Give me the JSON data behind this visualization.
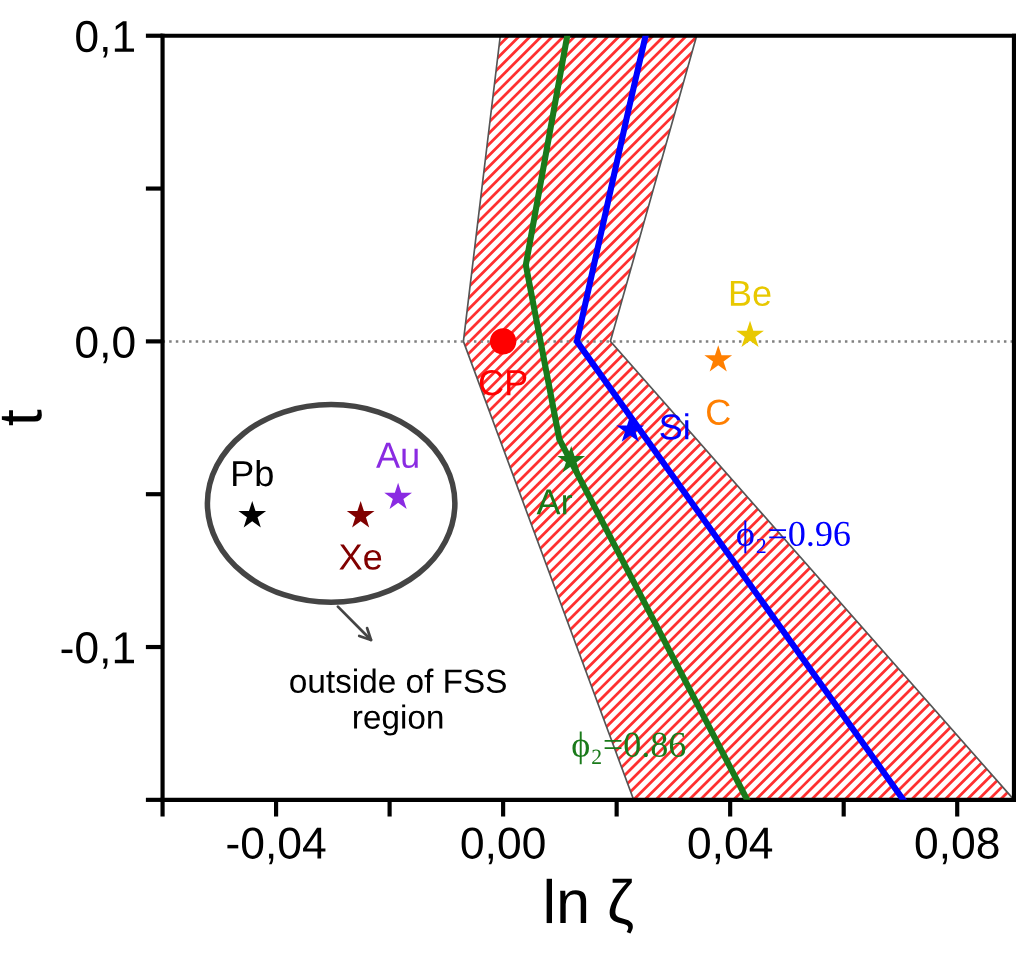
{
  "chart_data": {
    "type": "line",
    "xlabel": "ln ζ",
    "ylabel": "t",
    "xlim": [
      -0.06,
      0.09
    ],
    "ylim": [
      -0.15,
      0.1
    ],
    "xticks": [
      {
        "value": -0.06,
        "label": null
      },
      {
        "value": -0.04,
        "label": "-0,04"
      },
      {
        "value": -0.02,
        "label": null
      },
      {
        "value": 0.0,
        "label": "0,00"
      },
      {
        "value": 0.02,
        "label": null
      },
      {
        "value": 0.04,
        "label": "0,04"
      },
      {
        "value": 0.06,
        "label": null
      },
      {
        "value": 0.08,
        "label": "0,08"
      }
    ],
    "yticks": [
      {
        "value": -0.15,
        "label": null
      },
      {
        "value": -0.1,
        "label": "-0,1"
      },
      {
        "value": -0.05,
        "label": null
      },
      {
        "value": 0.0,
        "label": "0,0"
      },
      {
        "value": 0.05,
        "label": null
      },
      {
        "value": 0.1,
        "label": "0,1"
      }
    ],
    "grid": false,
    "ref_lines": [
      {
        "axis": "y",
        "value": 0,
        "label": null,
        "color": "#808080",
        "line_style": "dotted"
      }
    ],
    "series": [
      {
        "type": "area",
        "color": "#ff3030",
        "x": [
          -0.0005,
          -0.007,
          0.023,
          0.09,
          0.0189,
          0.0341
        ],
        "values": [
          0.1,
          0.0,
          -0.15,
          -0.15,
          0.0,
          0.1
        ]
      },
      {
        "name": "ϕ₂=0.86",
        "color": "#1a7a1a",
        "line_style": "solid",
        "marker": "none",
        "x": [
          0.0113,
          0.004,
          0.0099,
          0.043
        ],
        "values": [
          0.1,
          0.025,
          -0.032,
          -0.15
        ]
      },
      {
        "name": "ϕ₂=0.96",
        "color": "#0000ff",
        "line_style": "solid",
        "marker": "none",
        "x": [
          0.0251,
          0.022,
          0.013,
          0.0705
        ],
        "values": [
          0.1,
          0.075,
          0.0,
          -0.15
        ]
      },
      {
        "type": "scatter",
        "name": "CP",
        "color": "#ff0000",
        "marker": "circle",
        "x": [
          0.0
        ],
        "values": [
          0.0
        ]
      },
      {
        "type": "scatter",
        "name": "Be",
        "color": "#e8c800",
        "marker": "star",
        "x": [
          0.0435
        ],
        "values": [
          0.002
        ]
      },
      {
        "type": "scatter",
        "name": "C",
        "color": "#ff7f00",
        "marker": "star",
        "x": [
          0.0379
        ],
        "values": [
          -0.006
        ]
      },
      {
        "type": "scatter",
        "name": "Si",
        "color": "#0000ff",
        "marker": "star",
        "x": [
          0.0224
        ],
        "values": [
          -0.029
        ]
      },
      {
        "type": "scatter",
        "name": "Ar",
        "color": "#1a7a1a",
        "marker": "star",
        "x": [
          0.012
        ],
        "values": [
          -0.039
        ]
      },
      {
        "type": "scatter",
        "name": "Au",
        "color": "#8a2be2",
        "marker": "star",
        "x": [
          -0.0185
        ],
        "values": [
          -0.051
        ]
      },
      {
        "type": "scatter",
        "name": "Xe",
        "color": "#800000",
        "marker": "star",
        "x": [
          -0.0251
        ],
        "values": [
          -0.057
        ]
      },
      {
        "type": "scatter",
        "name": "Pb",
        "color": "#000000",
        "marker": "star",
        "x": [
          -0.0442
        ],
        "values": [
          -0.057
        ]
      }
    ],
    "annotations": [
      "outside of FSS\nregion"
    ]
  }
}
